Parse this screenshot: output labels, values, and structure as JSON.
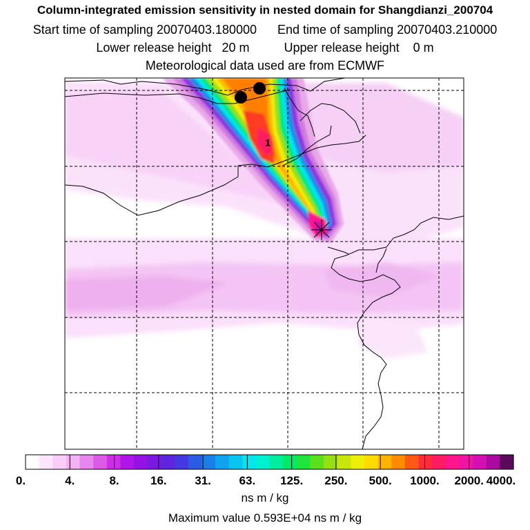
{
  "header": {
    "title": "Column-integrated emission sensitivity in nested domain for Shangdianzi_200704",
    "start_label": "Start time of sampling",
    "start_value": "20070403.180000",
    "end_label": "End time of sampling",
    "end_value": "20070403.210000",
    "lower_label": "Lower release height",
    "lower_value": "20 m",
    "upper_label": "Upper release height",
    "upper_value": "0 m",
    "met_line": "Meteorological data used are from ECMWF"
  },
  "map": {
    "plume_label": "1",
    "markers": [
      "site-marker",
      "plume-endpoint-dot",
      "plume-endpoint-dot"
    ]
  },
  "colorbar": {
    "tick_labels": [
      "0.",
      "4.",
      "8.",
      "16.",
      "31.",
      "63.",
      "125.",
      "250.",
      "500.",
      "1000.",
      "2000.",
      "4000."
    ],
    "colors": [
      "#ffffff",
      "#fde6fd",
      "#f8cdf8",
      "#f3b3f3",
      "#e985ee",
      "#dd5ae6",
      "#cc2ee6",
      "#b115e6",
      "#9412e3",
      "#7a1ae0",
      "#5f25dd",
      "#4438e0",
      "#2a5ce6",
      "#1b7fe9",
      "#10a2ec",
      "#08c4ee",
      "#00e5f0",
      "#00f0d2",
      "#00eda0",
      "#00ea6a",
      "#1ee43c",
      "#5ce01e",
      "#96df10",
      "#c8e60c",
      "#eeee08",
      "#ffdb00",
      "#ffb400",
      "#ff8c00",
      "#ff5a14",
      "#ff2d3c",
      "#ff1a64",
      "#ff148c",
      "#f014a6",
      "#d410b4",
      "#aa0aa0",
      "#5a0a5a"
    ],
    "unit": "ns m / kg",
    "max_label": "Maximum value",
    "max_value": "0.593E+04 ns m / kg"
  }
}
